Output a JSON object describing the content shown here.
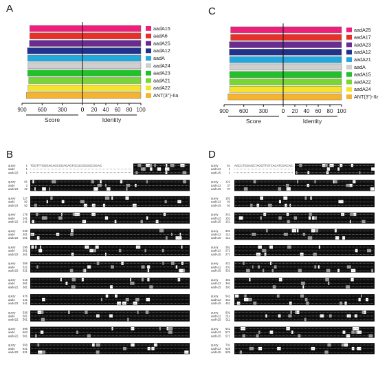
{
  "panels": {
    "A": "A",
    "B": "B",
    "C": "C",
    "D": "D"
  },
  "axis_labels": {
    "score": "Score",
    "identity": "Identity"
  },
  "chart_data": [
    {
      "panel": "A",
      "type": "bar",
      "orientation": "horizontal-diverging",
      "categories": [
        "aadA15",
        "aadA6",
        "aadA25",
        "aadA12",
        "aadA",
        "aadA24",
        "aadA23",
        "aadA21",
        "aadA22",
        "ANT(3'')-IIa"
      ],
      "colors": [
        "#ee1f7a",
        "#e8302a",
        "#6a2c91",
        "#22318c",
        "#23a8de",
        "#cfcfcf",
        "#22c02a",
        "#79d635",
        "#f5e42a",
        "#f5b330"
      ],
      "score": [
        785,
        785,
        790,
        820,
        815,
        810,
        815,
        800,
        810,
        835
      ],
      "identity": [
        100,
        100,
        100,
        100,
        100,
        100,
        100,
        100,
        100,
        100
      ],
      "score_ticks": [
        "900",
        "600",
        "300",
        "0"
      ],
      "identity_ticks": [
        "0",
        "20",
        "40",
        "60",
        "80",
        "100"
      ],
      "score_range": [
        0,
        900
      ],
      "identity_range": [
        0,
        100
      ],
      "xlabel_left": "Score",
      "xlabel_right": "Identity"
    },
    {
      "panel": "C",
      "type": "bar",
      "orientation": "horizontal-diverging",
      "categories": [
        "aadA25",
        "aadA17",
        "aadA23",
        "aadA12",
        "aadA21",
        "aadA",
        "aadA15",
        "aadA22",
        "aadA24",
        "ANT(3'')-IIa"
      ],
      "colors": [
        "#ee1f7a",
        "#e8302a",
        "#6a2c91",
        "#22318c",
        "#23a8de",
        "#cfcfcf",
        "#22c02a",
        "#79d635",
        "#f5e42a",
        "#f5b330"
      ],
      "score": [
        800,
        800,
        820,
        820,
        815,
        810,
        815,
        815,
        815,
        840
      ],
      "identity": [
        100,
        100,
        100,
        100,
        100,
        100,
        100,
        100,
        100,
        100
      ],
      "score_ticks": [
        "900",
        "600",
        "300",
        "0"
      ],
      "identity_ticks": [
        "0",
        "20",
        "40",
        "60",
        "80",
        "100"
      ],
      "score_range": [
        0,
        900
      ],
      "identity_range": [
        0,
        100
      ],
      "xlabel_left": "Score",
      "xlabel_right": "Identity"
    }
  ],
  "alignments": {
    "B": {
      "blocks": [
        {
          "pos": [
            "1",
            "1",
            "1"
          ],
          "names": [
            "query",
            "aadA",
            "aadA22"
          ]
        },
        {
          "pos": [
            "61",
            "2",
            "22"
          ],
          "names": [
            "query",
            "aadA",
            "aadA22"
          ]
        },
        {
          "pos": [
            "117",
            "82",
            "82"
          ],
          "names": [
            "query",
            "aadA",
            "aadA22"
          ]
        },
        {
          "pos": [
            "176",
            "141",
            "141"
          ],
          "names": [
            "query",
            "aadA",
            "aadA22"
          ]
        },
        {
          "pos": [
            "236",
            "201",
            "201"
          ],
          "names": [
            "query",
            "aadA",
            "aadA22"
          ]
        },
        {
          "pos": [
            "296",
            "261",
            "261"
          ],
          "names": [
            "query",
            "aadA",
            "aadA22"
          ]
        },
        {
          "pos": [
            "356",
            "321",
            "321"
          ],
          "names": [
            "query",
            "aadA",
            "aadA22"
          ]
        },
        {
          "pos": [
            "416",
            "381",
            "381"
          ],
          "names": [
            "query",
            "aadA",
            "aadA22"
          ]
        },
        {
          "pos": [
            "476",
            "441",
            "441"
          ],
          "names": [
            "query",
            "aadA",
            "aadA22"
          ]
        },
        {
          "pos": [
            "536",
            "501",
            "501"
          ],
          "names": [
            "query",
            "aadA",
            "aadA22"
          ]
        },
        {
          "pos": [
            "596",
            "563",
            "561"
          ],
          "names": [
            "query",
            "aadA",
            "aadA22"
          ]
        },
        {
          "pos": [
            "656",
            "621",
            "621"
          ],
          "names": [
            "query",
            "aadA",
            "aadA22"
          ]
        }
      ],
      "first_seq": "TGGTTTGGGAGAGCGGAGAGTGCGCGGGGCGGAG"
    },
    "D": {
      "blocks": [
        {
          "pos": [
            "61",
            "1",
            "1"
          ],
          "names": [
            "query",
            "aadA12",
            "aadA15"
          ]
        },
        {
          "pos": [
            "121",
            "37",
            "37"
          ],
          "names": [
            "query",
            "aadA12",
            "aadA15"
          ]
        },
        {
          "pos": [
            "181",
            "91",
            "91"
          ],
          "names": [
            "query",
            "aadA12",
            "aadA15"
          ]
        },
        {
          "pos": [
            "241",
            "151",
            "151"
          ],
          "names": [
            "query",
            "aadA12",
            "aadA15"
          ]
        },
        {
          "pos": [
            "301",
            "211",
            "211"
          ],
          "names": [
            "query",
            "aadA12",
            "aadA15"
          ]
        },
        {
          "pos": [
            "361",
            "271",
            "271"
          ],
          "names": [
            "query",
            "aadA12",
            "aadA15"
          ]
        },
        {
          "pos": [
            "421",
            "331",
            "331"
          ],
          "names": [
            "query",
            "aadA12",
            "aadA15"
          ]
        },
        {
          "pos": [
            "481",
            "391",
            "391"
          ],
          "names": [
            "query",
            "aadA12",
            "aadA15"
          ]
        },
        {
          "pos": [
            "541",
            "451",
            "451"
          ],
          "names": [
            "query",
            "aadA12",
            "aadA15"
          ]
        },
        {
          "pos": [
            "601",
            "511",
            "511"
          ],
          "names": [
            "query",
            "aadA12",
            "aadA15"
          ]
        },
        {
          "pos": [
            "641",
            "571",
            "571"
          ],
          "names": [
            "query",
            "aadA12",
            "aadA15"
          ]
        },
        {
          "pos": [
            "701",
            "629",
            "629"
          ],
          "names": [
            "query",
            "aadA12",
            "aadA15"
          ]
        }
      ],
      "first_seq": "AGCCTGGAGCTAGGTTGTCACATCGACAG"
    }
  }
}
